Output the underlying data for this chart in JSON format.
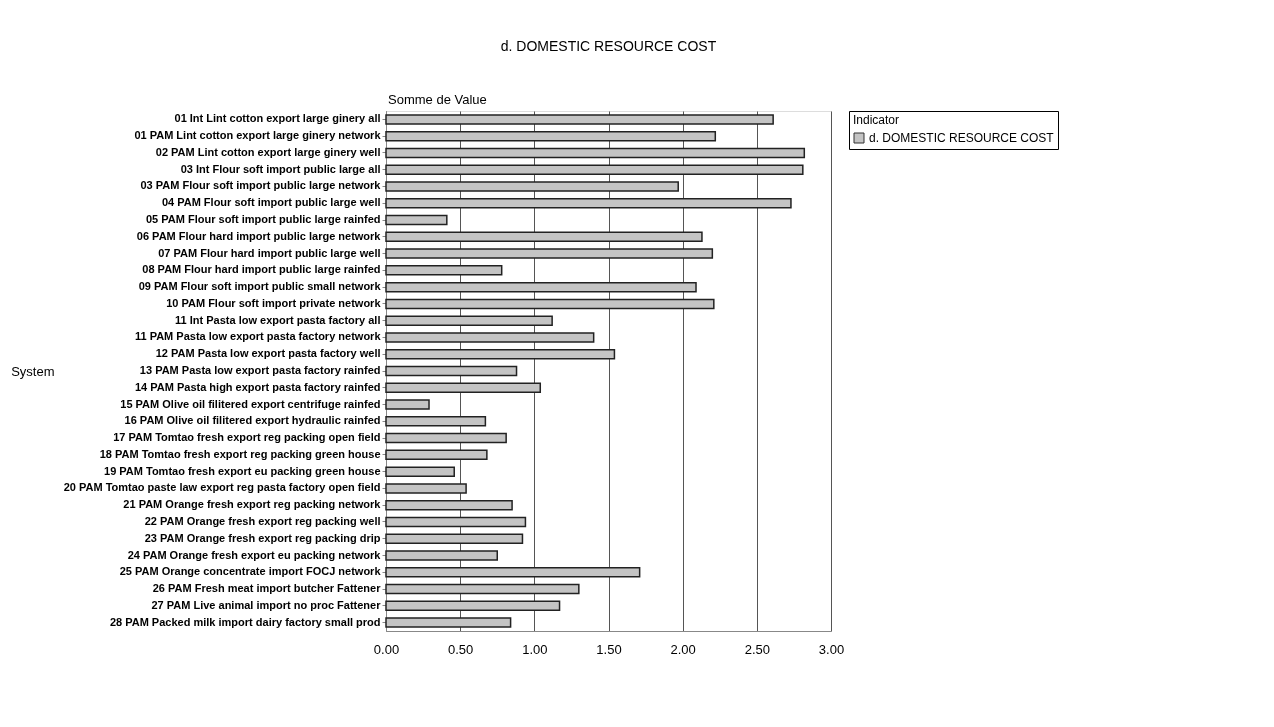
{
  "chart_data": {
    "type": "bar",
    "orientation": "horizontal",
    "title": "d. DOMESTIC RESOURCE COST",
    "ylabel": "System",
    "legend_title": "Indicator",
    "annotations": [
      "Somme de Value"
    ],
    "categories": [
      "01 Int Lint cotton export large ginery all",
      "01 PAM  Lint cotton export large ginery network",
      "02 PAM  Lint cotton export large ginery well",
      "03 Int Flour soft import public large all",
      "03 PAM  Flour soft import public large network",
      "04 PAM  Flour soft import public large well",
      "05 PAM  Flour soft import public large rainfed",
      "06 PAM  Flour hard import public large network",
      "07 PAM  Flour hard import public large well",
      "08 PAM  Flour hard import public large rainfed",
      "09 PAM  Flour soft import public small network",
      "10 PAM  Flour soft import private network",
      "11 Int Pasta low export pasta factory all",
      "11 PAM  Pasta low export pasta factory network",
      "12 PAM  Pasta low export pasta factory well",
      "13 PAM  Pasta low export pasta factory rainfed",
      "14 PAM  Pasta high export pasta factory rainfed",
      "15 PAM  Olive oil filitered export centrifuge rainfed",
      "16 PAM  Olive oil filitered export hydraulic rainfed",
      "17 PAM  Tomtao fresh export reg packing open field",
      "18 PAM  Tomtao fresh export reg packing green house",
      "19 PAM  Tomtao fresh export eu packing green house",
      "20 PAM  Tomtao paste law export reg pasta factory open field",
      "21 PAM  Orange fresh export reg packing network",
      "22 PAM  Orange fresh export reg packing well",
      "23 PAM  Orange fresh export reg packing drip",
      "24 PAM  Orange fresh export eu packing network",
      "25 PAM  Orange concentrate import FOCJ network",
      "26 PAM  Fresh meat import butcher Fattener",
      "27 PAM  Live animal import  no proc Fattener",
      "28 PAM  Packed milk import dairy factory small prod"
    ],
    "series": [
      {
        "name": "d. DOMESTIC RESOURCE COST",
        "color": "#c4c4c4",
        "values": [
          2.61,
          2.22,
          2.82,
          2.81,
          1.97,
          2.73,
          0.41,
          2.13,
          2.2,
          0.78,
          2.09,
          2.21,
          1.12,
          1.4,
          1.54,
          0.88,
          1.04,
          0.29,
          0.67,
          0.81,
          0.68,
          0.46,
          0.54,
          0.85,
          0.94,
          0.92,
          0.75,
          1.71,
          1.3,
          1.17,
          0.84
        ]
      }
    ],
    "xlim": [
      0,
      3
    ],
    "xticks": [
      {
        "value": 0,
        "label": "0.00"
      },
      {
        "value": 0.5,
        "label": "0.50"
      },
      {
        "value": 1,
        "label": "1.00"
      },
      {
        "value": 1.5,
        "label": "1.50"
      },
      {
        "value": 2,
        "label": "2.00"
      },
      {
        "value": 2.5,
        "label": "2.50"
      },
      {
        "value": 3,
        "label": "3.00"
      }
    ],
    "grid": "x",
    "legend": "right"
  }
}
